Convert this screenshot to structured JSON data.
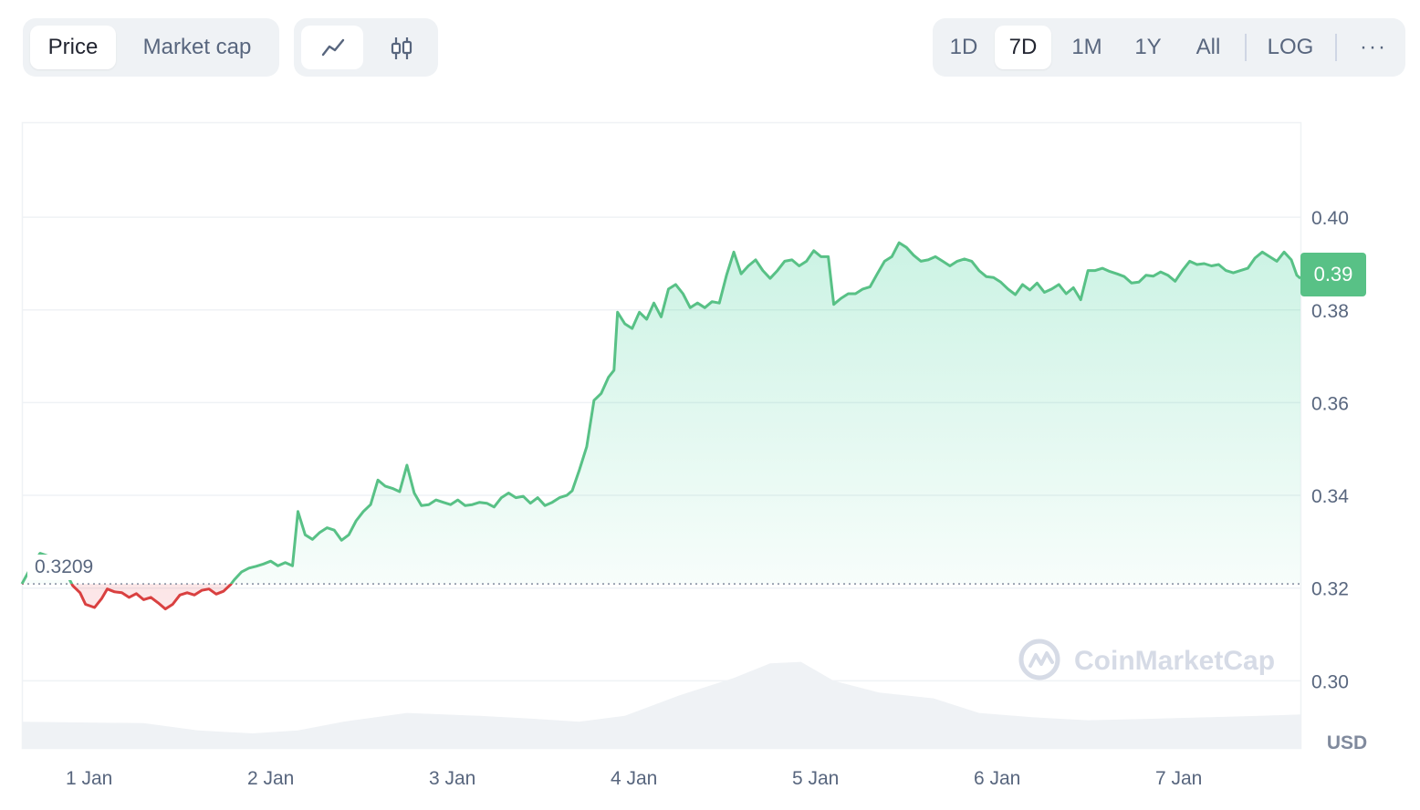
{
  "toolbar": {
    "metric_tabs": [
      {
        "label": "Price",
        "active": true
      },
      {
        "label": "Market cap",
        "active": false
      }
    ],
    "chart_type_buttons": [
      {
        "icon": "line-chart-icon",
        "active": true
      },
      {
        "icon": "candlestick-icon",
        "active": false
      }
    ],
    "range_tabs": [
      {
        "label": "1D",
        "active": false
      },
      {
        "label": "7D",
        "active": true
      },
      {
        "label": "1M",
        "active": false
      },
      {
        "label": "1Y",
        "active": false
      },
      {
        "label": "All",
        "active": false
      }
    ],
    "log_label": "LOG",
    "more_icon": "more-horizontal-icon",
    "more_label": "···"
  },
  "current_price_label": "0.39",
  "reference_price_label": "0.3209",
  "currency_label": "USD",
  "watermark": "CoinMarketCap",
  "colors": {
    "up": "#58c186",
    "down": "#d94040",
    "up_fill": "#16c784",
    "down_fill": "#ea3943",
    "volume": "#eff2f5",
    "grid": "#eff2f5",
    "text": "#58667e"
  },
  "chart_data": {
    "type": "line",
    "xlabel": "",
    "ylabel": "",
    "y_ticks": [
      "0.40",
      "0.38",
      "0.36",
      "0.34",
      "0.32",
      "0.30"
    ],
    "y_tick_values": [
      0.4,
      0.38,
      0.36,
      0.34,
      0.32,
      0.3
    ],
    "ylim": [
      0.2855,
      0.4205
    ],
    "x_ticks": [
      "1 Jan",
      "2 Jan",
      "3 Jan",
      "4 Jan",
      "5 Jan",
      "6 Jan",
      "7 Jan"
    ],
    "x_tick_values": [
      0,
      1,
      2,
      3,
      4,
      5,
      6
    ],
    "xlim": [
      -0.37,
      6.67
    ],
    "reference_price": 0.3209,
    "grid": true,
    "series": [
      {
        "points": [
          [
            -0.37,
            0.3209
          ],
          [
            -0.32,
            0.3245
          ],
          [
            -0.27,
            0.3275
          ],
          [
            -0.22,
            0.3268
          ],
          [
            -0.17,
            0.326
          ],
          [
            -0.13,
            0.3235
          ],
          [
            -0.09,
            0.3205
          ],
          [
            -0.05,
            0.319
          ],
          [
            -0.02,
            0.3165
          ],
          [
            0.03,
            0.3158
          ],
          [
            0.07,
            0.3178
          ],
          [
            0.1,
            0.3198
          ],
          [
            0.14,
            0.3192
          ],
          [
            0.18,
            0.319
          ],
          [
            0.22,
            0.318
          ],
          [
            0.26,
            0.3188
          ],
          [
            0.3,
            0.3175
          ],
          [
            0.34,
            0.318
          ],
          [
            0.38,
            0.3168
          ],
          [
            0.42,
            0.3155
          ],
          [
            0.46,
            0.3165
          ],
          [
            0.5,
            0.3185
          ],
          [
            0.54,
            0.319
          ],
          [
            0.58,
            0.3185
          ],
          [
            0.62,
            0.3195
          ],
          [
            0.66,
            0.3198
          ],
          [
            0.7,
            0.3187
          ],
          [
            0.74,
            0.3193
          ],
          [
            0.78,
            0.3208
          ],
          [
            0.8,
            0.3218
          ],
          [
            0.84,
            0.3235
          ],
          [
            0.88,
            0.3243
          ],
          [
            0.92,
            0.3247
          ],
          [
            0.96,
            0.3252
          ],
          [
            1.0,
            0.3258
          ],
          [
            1.04,
            0.3248
          ],
          [
            1.08,
            0.3255
          ],
          [
            1.12,
            0.3248
          ],
          [
            1.15,
            0.3365
          ],
          [
            1.19,
            0.3315
          ],
          [
            1.23,
            0.3305
          ],
          [
            1.27,
            0.332
          ],
          [
            1.31,
            0.333
          ],
          [
            1.35,
            0.3325
          ],
          [
            1.39,
            0.3303
          ],
          [
            1.43,
            0.3315
          ],
          [
            1.47,
            0.3345
          ],
          [
            1.51,
            0.3365
          ],
          [
            1.55,
            0.338
          ],
          [
            1.59,
            0.3433
          ],
          [
            1.63,
            0.342
          ],
          [
            1.67,
            0.3415
          ],
          [
            1.71,
            0.3408
          ],
          [
            1.75,
            0.3465
          ],
          [
            1.79,
            0.3405
          ],
          [
            1.83,
            0.3378
          ],
          [
            1.87,
            0.338
          ],
          [
            1.91,
            0.339
          ],
          [
            1.95,
            0.3385
          ],
          [
            1.99,
            0.338
          ],
          [
            2.03,
            0.339
          ],
          [
            2.07,
            0.3378
          ],
          [
            2.11,
            0.338
          ],
          [
            2.15,
            0.3385
          ],
          [
            2.19,
            0.3383
          ],
          [
            2.23,
            0.3375
          ],
          [
            2.27,
            0.3395
          ],
          [
            2.31,
            0.3405
          ],
          [
            2.35,
            0.3395
          ],
          [
            2.39,
            0.3398
          ],
          [
            2.43,
            0.3383
          ],
          [
            2.47,
            0.3395
          ],
          [
            2.51,
            0.3378
          ],
          [
            2.55,
            0.3385
          ],
          [
            2.59,
            0.3395
          ],
          [
            2.63,
            0.34
          ],
          [
            2.66,
            0.341
          ],
          [
            2.7,
            0.3455
          ],
          [
            2.74,
            0.3505
          ],
          [
            2.78,
            0.3605
          ],
          [
            2.82,
            0.362
          ],
          [
            2.86,
            0.3655
          ],
          [
            2.89,
            0.367
          ],
          [
            2.91,
            0.3795
          ],
          [
            2.95,
            0.377
          ],
          [
            2.99,
            0.376
          ],
          [
            3.03,
            0.3795
          ],
          [
            3.07,
            0.378
          ],
          [
            3.11,
            0.3815
          ],
          [
            3.15,
            0.3785
          ],
          [
            3.19,
            0.3845
          ],
          [
            3.23,
            0.3855
          ],
          [
            3.27,
            0.3835
          ],
          [
            3.31,
            0.3805
          ],
          [
            3.35,
            0.3815
          ],
          [
            3.39,
            0.3805
          ],
          [
            3.43,
            0.3818
          ],
          [
            3.47,
            0.3815
          ],
          [
            3.51,
            0.3875
          ],
          [
            3.55,
            0.3925
          ],
          [
            3.59,
            0.3878
          ],
          [
            3.63,
            0.3895
          ],
          [
            3.67,
            0.3908
          ],
          [
            3.71,
            0.3885
          ],
          [
            3.75,
            0.3868
          ],
          [
            3.79,
            0.3885
          ],
          [
            3.83,
            0.3905
          ],
          [
            3.87,
            0.3908
          ],
          [
            3.91,
            0.3895
          ],
          [
            3.95,
            0.3905
          ],
          [
            3.99,
            0.3928
          ],
          [
            4.03,
            0.3915
          ],
          [
            4.07,
            0.3915
          ],
          [
            4.1,
            0.3812
          ],
          [
            4.14,
            0.3825
          ],
          [
            4.18,
            0.3835
          ],
          [
            4.22,
            0.3835
          ],
          [
            4.26,
            0.3845
          ],
          [
            4.3,
            0.385
          ],
          [
            4.34,
            0.3878
          ],
          [
            4.38,
            0.3905
          ],
          [
            4.42,
            0.3915
          ],
          [
            4.46,
            0.3945
          ],
          [
            4.5,
            0.3935
          ],
          [
            4.54,
            0.3918
          ],
          [
            4.58,
            0.3905
          ],
          [
            4.62,
            0.3908
          ],
          [
            4.66,
            0.3915
          ],
          [
            4.7,
            0.3905
          ],
          [
            4.74,
            0.3895
          ],
          [
            4.78,
            0.3905
          ],
          [
            4.82,
            0.391
          ],
          [
            4.86,
            0.3905
          ],
          [
            4.9,
            0.3885
          ],
          [
            4.94,
            0.3872
          ],
          [
            4.98,
            0.387
          ],
          [
            5.02,
            0.386
          ],
          [
            5.06,
            0.3845
          ],
          [
            5.1,
            0.3833
          ],
          [
            5.14,
            0.3855
          ],
          [
            5.18,
            0.3843
          ],
          [
            5.22,
            0.3858
          ],
          [
            5.26,
            0.3838
          ],
          [
            5.3,
            0.3845
          ],
          [
            5.34,
            0.3855
          ],
          [
            5.38,
            0.3835
          ],
          [
            5.42,
            0.3848
          ],
          [
            5.46,
            0.3822
          ],
          [
            5.5,
            0.3885
          ],
          [
            5.54,
            0.3885
          ],
          [
            5.58,
            0.389
          ],
          [
            5.62,
            0.3883
          ],
          [
            5.66,
            0.3878
          ],
          [
            5.7,
            0.3872
          ],
          [
            5.74,
            0.3858
          ],
          [
            5.78,
            0.386
          ],
          [
            5.82,
            0.3875
          ],
          [
            5.86,
            0.3873
          ],
          [
            5.9,
            0.3882
          ],
          [
            5.94,
            0.3875
          ],
          [
            5.98,
            0.3862
          ],
          [
            6.02,
            0.3885
          ],
          [
            6.06,
            0.3905
          ],
          [
            6.1,
            0.3898
          ],
          [
            6.14,
            0.39
          ],
          [
            6.18,
            0.3895
          ],
          [
            6.22,
            0.3898
          ],
          [
            6.26,
            0.3885
          ],
          [
            6.3,
            0.388
          ],
          [
            6.34,
            0.3885
          ],
          [
            6.38,
            0.389
          ],
          [
            6.42,
            0.3912
          ],
          [
            6.46,
            0.3925
          ],
          [
            6.5,
            0.3915
          ],
          [
            6.54,
            0.3905
          ],
          [
            6.58,
            0.3925
          ],
          [
            6.62,
            0.3908
          ],
          [
            6.65,
            0.3875
          ],
          [
            6.67,
            0.3868
          ]
        ]
      }
    ],
    "volume_series": {
      "points": [
        [
          -0.37,
          0.18
        ],
        [
          0.3,
          0.17
        ],
        [
          0.6,
          0.12
        ],
        [
          0.9,
          0.1
        ],
        [
          1.15,
          0.12
        ],
        [
          1.4,
          0.18
        ],
        [
          1.75,
          0.24
        ],
        [
          2.15,
          0.22
        ],
        [
          2.45,
          0.2
        ],
        [
          2.7,
          0.18
        ],
        [
          2.95,
          0.22
        ],
        [
          3.25,
          0.36
        ],
        [
          3.55,
          0.48
        ],
        [
          3.75,
          0.58
        ],
        [
          3.92,
          0.59
        ],
        [
          4.1,
          0.46
        ],
        [
          4.35,
          0.38
        ],
        [
          4.65,
          0.34
        ],
        [
          4.9,
          0.24
        ],
        [
          5.2,
          0.21
        ],
        [
          5.5,
          0.19
        ],
        [
          5.85,
          0.2
        ],
        [
          6.15,
          0.21
        ],
        [
          6.45,
          0.22
        ],
        [
          6.67,
          0.23
        ]
      ]
    }
  }
}
